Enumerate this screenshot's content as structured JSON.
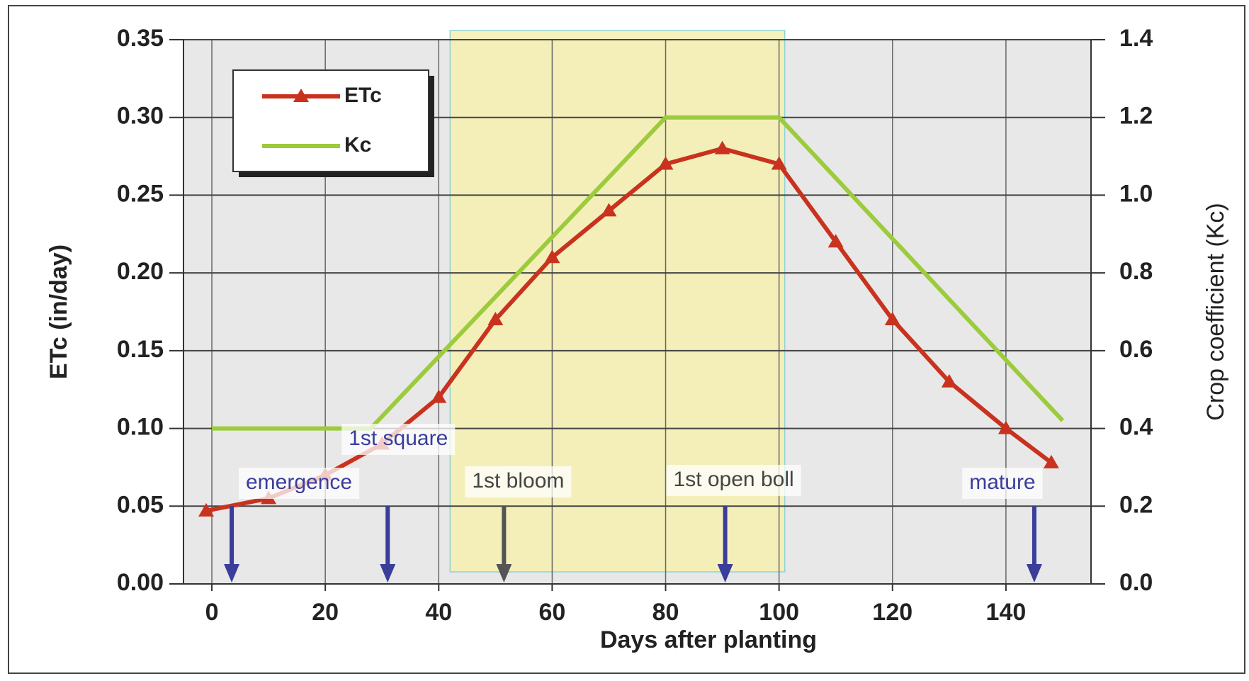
{
  "chart_data": {
    "type": "line",
    "x_label": "Days after planting",
    "y_label": "ETc (in/day)",
    "y2_label": "Crop coefficient (Kc)",
    "xlim": [
      -5,
      155
    ],
    "xticks": [
      0,
      20,
      40,
      60,
      80,
      100,
      120,
      140
    ],
    "ylim": [
      0,
      0.35
    ],
    "yticks": [
      {
        "value": 0,
        "label": "0.00"
      },
      0.05,
      {
        "value": 0.1,
        "label": "0.10"
      },
      0.15,
      {
        "value": 0.2,
        "label": "0.20"
      },
      0.25,
      {
        "value": 0.3,
        "label": "0.30"
      },
      0.35
    ],
    "y2lim": [
      0,
      1.4
    ],
    "y2ticks": [
      {
        "value": 0,
        "label": "0.0"
      },
      0.2,
      0.4,
      0.6,
      0.8,
      {
        "value": 1,
        "label": "1.0"
      },
      1.2,
      1.4
    ],
    "grid": true,
    "legend": "upper left",
    "shade": [
      42,
      101
    ],
    "series": [
      {
        "name": "ETc",
        "color": "#c8321e",
        "marker": "triangle",
        "x": [
          -1,
          10,
          20,
          30,
          40,
          50,
          60,
          70,
          80,
          90,
          100,
          110,
          120,
          130,
          140,
          148
        ],
        "values": [
          0.047,
          0.055,
          0.07,
          0.09,
          0.12,
          0.17,
          0.21,
          0.24,
          0.27,
          0.28,
          0.27,
          0.22,
          0.17,
          0.13,
          0.1,
          0.078
        ]
      },
      {
        "name": "Kc",
        "color": "#9ccb3b",
        "axis": "y2",
        "x": [
          0,
          28,
          80,
          100,
          150
        ],
        "values": [
          0.4,
          0.4,
          1.2,
          1.2,
          0.42
        ]
      }
    ],
    "stages": [
      {
        "label": "emergence",
        "x": 3.5
      },
      {
        "label": "1st square",
        "x": 31
      },
      {
        "label": "1st bloom",
        "x": 51.5
      },
      {
        "label": "1st open  boll",
        "x": 90.5
      },
      {
        "label": "mature",
        "x": 145
      }
    ]
  }
}
